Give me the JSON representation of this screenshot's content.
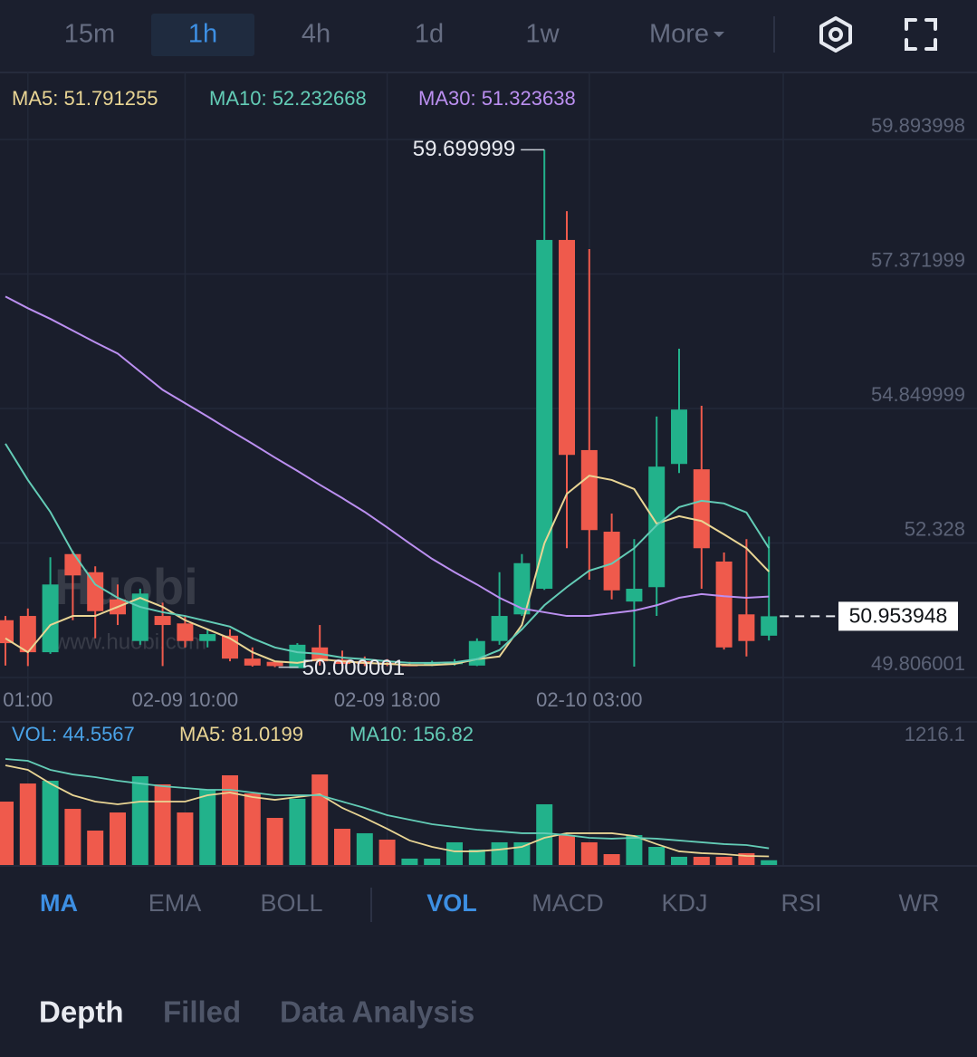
{
  "toolbar": {
    "intervals": [
      "15m",
      "1h",
      "4h",
      "1d",
      "1w",
      "More"
    ],
    "active_index": 1
  },
  "watermark": {
    "logo": "Huobi",
    "url": "www.huobi.com"
  },
  "chart_data": [
    {
      "type": "candlestick",
      "categories": [
        null,
        "01:00",
        null,
        null,
        null,
        null,
        null,
        null,
        "02-09 10:00",
        null,
        null,
        null,
        null,
        null,
        null,
        null,
        null,
        "02-09 18:00",
        null,
        null,
        null,
        null,
        null,
        null,
        null,
        null,
        "02-10 03:00",
        null,
        null,
        null,
        null,
        null,
        null,
        null,
        null
      ],
      "open": [
        50.88,
        50.96,
        50.28,
        52.12,
        51.78,
        51.27,
        50.49,
        50.96,
        50.82,
        50.49,
        50.59,
        50.16,
        50.1,
        49.98,
        50.37,
        50.14,
        50.11,
        50.08,
        50.05,
        50.05,
        50.06,
        50.03,
        50.49,
        50.99,
        51.47,
        58.01,
        54.07,
        52.54,
        51.23,
        51.5,
        53.81,
        53.71,
        51.98,
        50.99,
        50.59
      ],
      "high": [
        50.96,
        51.1,
        52.06,
        52.18,
        51.89,
        51.55,
        51.47,
        51.21,
        50.96,
        50.71,
        50.71,
        50.37,
        50.11,
        50.45,
        50.79,
        50.31,
        50.2,
        50.15,
        50.1,
        50.12,
        50.15,
        50.54,
        51.78,
        52.12,
        59.699999,
        58.55,
        57.84,
        52.88,
        52.4,
        54.7,
        55.97,
        54.9,
        52.15,
        52.4,
        52.45
      ],
      "low": [
        50.03,
        50.02,
        50.25,
        50.88,
        50.54,
        50.79,
        50.42,
        50.02,
        50.37,
        50.37,
        50.11,
        50.01,
        50.000001,
        50.01,
        50.03,
        50.02,
        50.02,
        50.02,
        50.02,
        50.02,
        50.03,
        50.02,
        50.42,
        50.96,
        51.45,
        52.23,
        51.64,
        51.27,
        50.01,
        50.96,
        53.64,
        51.47,
        50.33,
        50.2,
        50.5
      ],
      "close": [
        50.45,
        50.28,
        51.55,
        51.72,
        51.05,
        50.99,
        51.38,
        50.79,
        50.49,
        50.62,
        50.16,
        50.03,
        50.02,
        50.42,
        50.11,
        50.06,
        50.06,
        50.05,
        50.03,
        50.07,
        50.09,
        50.49,
        50.96,
        51.95,
        58.01,
        53.98,
        52.57,
        51.44,
        51.47,
        53.76,
        54.83,
        52.23,
        50.37,
        50.49,
        50.953948
      ],
      "up_color": "#22b28b",
      "down_color": "#ef5a4c",
      "ylim": [
        49.806001,
        59.893998
      ],
      "yticks": [
        49.806001,
        52.328,
        54.849999,
        57.371999,
        59.893998
      ],
      "grid": true,
      "series": [
        {
          "name": "MA5: 51.791255",
          "color": "#e9d594",
          "values": [
            50.54,
            50.28,
            50.79,
            50.96,
            50.96,
            51.13,
            51.3,
            51.13,
            50.88,
            50.71,
            50.54,
            50.28,
            50.11,
            50.08,
            50.15,
            50.11,
            50.08,
            50.06,
            50.04,
            50.04,
            50.06,
            50.15,
            50.2,
            50.79,
            52.32,
            53.25,
            53.59,
            53.51,
            53.34,
            52.69,
            52.83,
            52.74,
            52.49,
            52.23,
            51.791255
          ]
        },
        {
          "name": "MA10: 52.232668",
          "color": "#63ccb6",
          "values": [
            54.19,
            53.51,
            52.91,
            52.15,
            51.55,
            51.3,
            51.13,
            51.03,
            50.96,
            50.86,
            50.76,
            50.54,
            50.37,
            50.28,
            50.25,
            50.18,
            50.15,
            50.11,
            50.08,
            50.08,
            50.09,
            50.15,
            50.32,
            50.71,
            51.16,
            51.5,
            51.81,
            51.94,
            52.23,
            52.66,
            53.0,
            53.12,
            53.07,
            52.9,
            52.232668
          ]
        },
        {
          "name": "MA30: 51.323638",
          "color": "#bb8ff0",
          "values": [
            56.95,
            56.73,
            56.53,
            56.31,
            56.09,
            55.88,
            55.54,
            55.2,
            54.95,
            54.7,
            54.44,
            54.19,
            53.93,
            53.68,
            53.42,
            53.17,
            52.91,
            52.62,
            52.32,
            52.03,
            51.78,
            51.55,
            51.3,
            51.1,
            51.03,
            50.96,
            50.96,
            51.01,
            51.06,
            51.16,
            51.3,
            51.37,
            51.33,
            51.3,
            51.323638
          ]
        }
      ]
    },
    {
      "type": "bar",
      "ylim": [
        0,
        1216.1
      ],
      "yticks": [
        1216.1
      ],
      "series": [
        {
          "name": "VOL: 44.5567",
          "type": "bar",
          "color": "#4aa3e8",
          "values": [
            595,
            765,
            791,
            527,
            323,
            493,
            833,
            757,
            493,
            706,
            842,
            672,
            442,
            621,
            850,
            340,
            298,
            238,
            60,
            60,
            213,
            145,
            213,
            213,
            570,
            281,
            213,
            102,
            281,
            170,
            77,
            77,
            77,
            111,
            44.5567
          ],
          "colors": [
            "#ef5a4c",
            "#ef5a4c",
            "#22b28b",
            "#ef5a4c",
            "#ef5a4c",
            "#ef5a4c",
            "#22b28b",
            "#ef5a4c",
            "#ef5a4c",
            "#22b28b",
            "#ef5a4c",
            "#ef5a4c",
            "#ef5a4c",
            "#22b28b",
            "#ef5a4c",
            "#ef5a4c",
            "#22b28b",
            "#ef5a4c",
            "#22b28b",
            "#22b28b",
            "#22b28b",
            "#22b28b",
            "#22b28b",
            "#22b28b",
            "#22b28b",
            "#ef5a4c",
            "#ef5a4c",
            "#ef5a4c",
            "#22b28b",
            "#22b28b",
            "#22b28b",
            "#ef5a4c",
            "#ef5a4c",
            "#ef5a4c",
            "#22b28b"
          ]
        },
        {
          "name": "MA5: 81.0199",
          "type": "line",
          "color": "#e9d594",
          "values": [
            935,
            893,
            765,
            655,
            595,
            570,
            595,
            595,
            595,
            655,
            680,
            638,
            612,
            638,
            663,
            536,
            442,
            340,
            230,
            170,
            128,
            128,
            145,
            170,
            255,
            298,
            298,
            298,
            272,
            196,
            128,
            111,
            102,
            85,
            81.0199
          ]
        },
        {
          "name": "MA10: 156.82",
          "type": "line",
          "color": "#63ccb6",
          "values": [
            995,
            978,
            893,
            850,
            825,
            791,
            765,
            740,
            723,
            706,
            706,
            680,
            655,
            655,
            655,
            595,
            536,
            468,
            425,
            383,
            357,
            332,
            315,
            298,
            298,
            281,
            255,
            247,
            255,
            247,
            230,
            213,
            196,
            187,
            156.82
          ]
        }
      ]
    }
  ],
  "indicator_tabs": {
    "main": [
      "MA",
      "EMA",
      "BOLL"
    ],
    "sub": [
      "VOL",
      "MACD",
      "KDJ",
      "RSI",
      "WR"
    ],
    "main_active": 0,
    "sub_active": 0
  },
  "bottom_tabs": {
    "items": [
      "Depth",
      "Filled",
      "Data Analysis"
    ],
    "active": 0
  }
}
